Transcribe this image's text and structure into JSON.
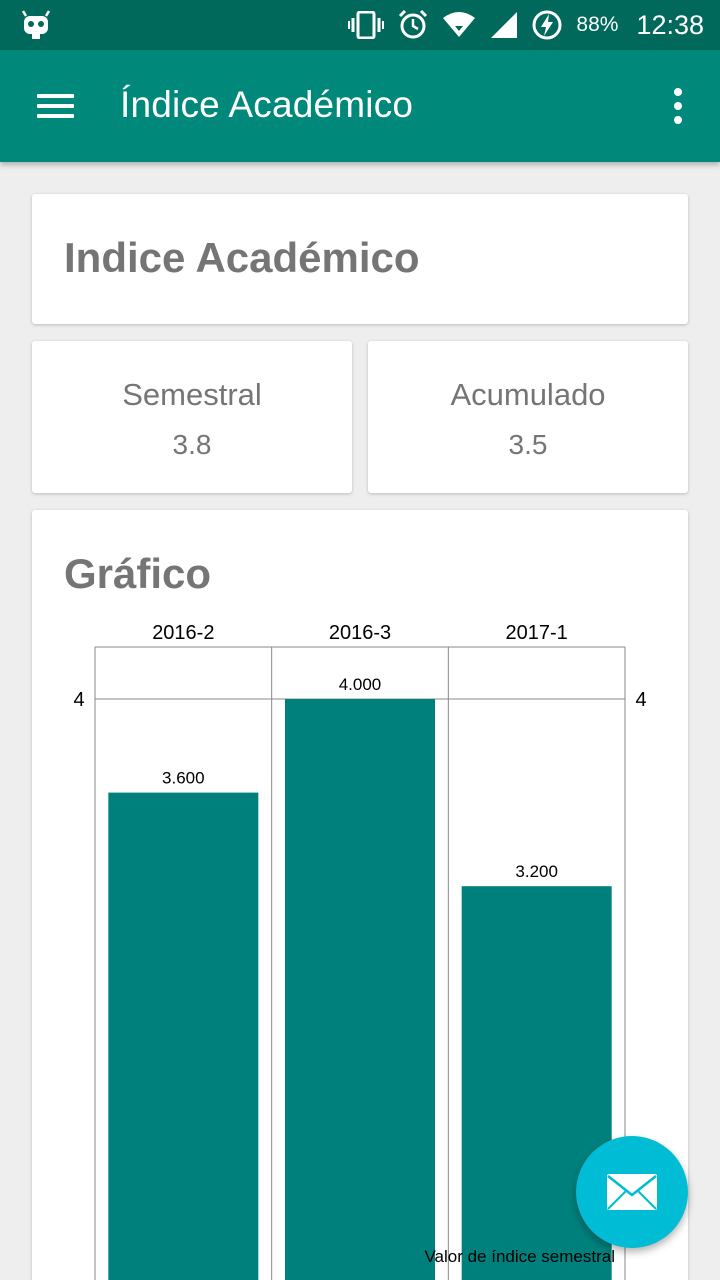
{
  "status_bar": {
    "battery_percent": "88%",
    "time": "12:38",
    "icons": [
      "cyanogen-robot-icon",
      "vibrate-icon",
      "alarm-icon",
      "wifi-icon",
      "signal-icon",
      "battery-charging-icon"
    ]
  },
  "app_bar": {
    "title": "Índice Académico",
    "menu_icon": "hamburger-menu-icon",
    "overflow_icon": "more-vertical-icon",
    "color": "#00897b"
  },
  "header_card": {
    "title": "Indice Académico"
  },
  "stats": {
    "semestral": {
      "label": "Semestral",
      "value": "3.8"
    },
    "acumulado": {
      "label": "Acumulado",
      "value": "3.5"
    }
  },
  "chart_card": {
    "title": "Gráfico"
  },
  "chart_data": {
    "type": "bar",
    "categories": [
      "2016-2",
      "2016-3",
      "2017-1"
    ],
    "series": [
      {
        "name": "Valor de índice semestral",
        "values": [
          3.6,
          4.0,
          3.2
        ],
        "labels": [
          "3.600",
          "4.000",
          "3.200"
        ],
        "color": "#00807c"
      }
    ],
    "y_tick_label": "4",
    "grid": true,
    "legend_position": "bottom-right"
  },
  "fab": {
    "icon": "email-icon",
    "color": "#00bcd4"
  }
}
